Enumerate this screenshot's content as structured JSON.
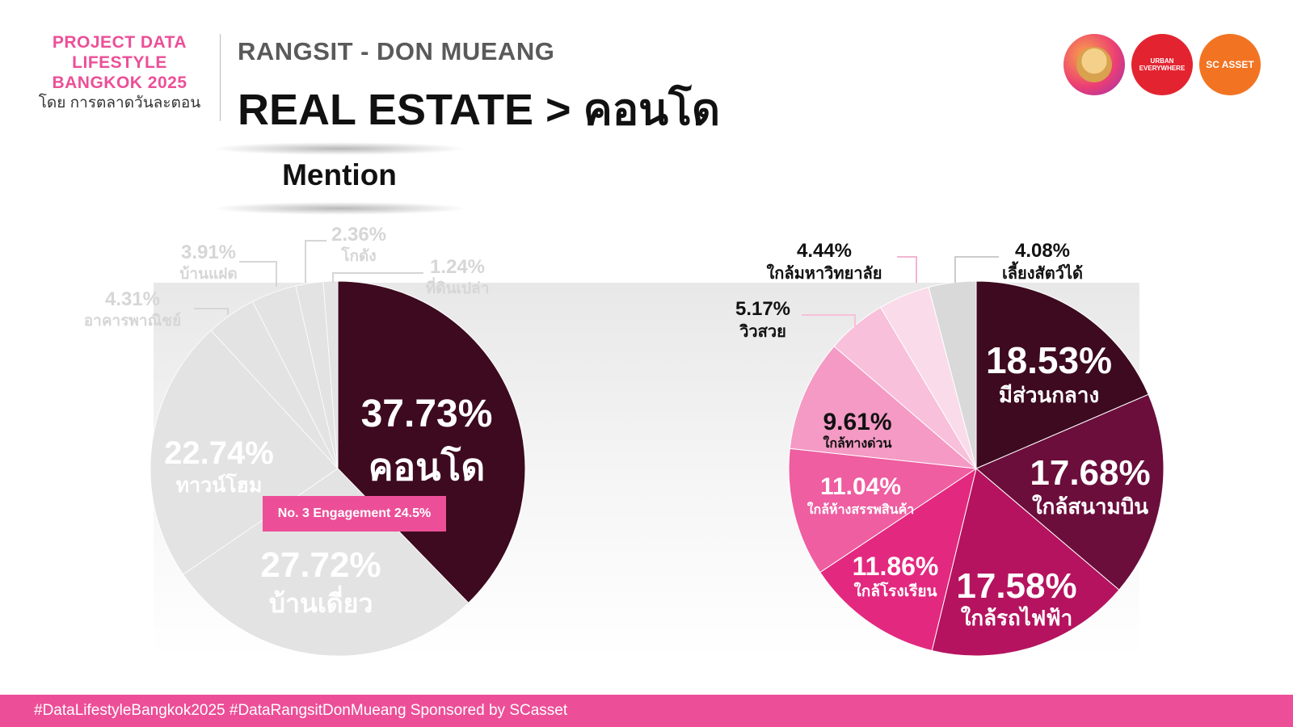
{
  "header": {
    "brand_lines": [
      "PROJECT DATA",
      "LIFESTYLE",
      "BANGKOK 2025"
    ],
    "brand_by": "โดย การตลาดวันละตอน",
    "subtitle": "RANGSIT - DON MUEANG",
    "title": "REAL ESTATE > คอนโด"
  },
  "logos": [
    {
      "name": "hat-avatar-logo"
    },
    {
      "name": "urban-everywhere-logo",
      "text": "URBAN EVERYWHERE"
    },
    {
      "name": "sc-asset-logo",
      "text": "SC ASSET"
    }
  ],
  "section_label": "Mention",
  "badge": "No. 3 Engagement 24.5%",
  "footer": "#DataLifestyleBangkok2025 #DataRangsitDonMueang Sponsored by SCasset",
  "colors": {
    "pink": "#ec4f98",
    "highlight": "#3d0a1f",
    "grey": "#e3e3e3",
    "faint_label": "#d6d6d6"
  },
  "chart_data": [
    {
      "type": "pie",
      "title": "Mention",
      "slices": [
        {
          "label": "คอนโด",
          "value": 37.73,
          "value_text": "37.73%",
          "color": "#3d0a1f",
          "highlight": true
        },
        {
          "label": "บ้านเดี่ยว",
          "value": 27.72,
          "value_text": "27.72%",
          "color": "#e3e3e3"
        },
        {
          "label": "ทาวน์โฮม",
          "value": 22.74,
          "value_text": "22.74%",
          "color": "#e3e3e3"
        },
        {
          "label": "อาคารพาณิชย์",
          "value": 4.31,
          "value_text": "4.31%",
          "color": "#e3e3e3"
        },
        {
          "label": "บ้านแฝด",
          "value": 3.91,
          "value_text": "3.91%",
          "color": "#e3e3e3"
        },
        {
          "label": "โกดัง",
          "value": 2.36,
          "value_text": "2.36%",
          "color": "#e3e3e3"
        },
        {
          "label": "ที่ดินเปล่า",
          "value": 1.24,
          "value_text": "1.24%",
          "color": "#e3e3e3"
        }
      ]
    },
    {
      "type": "pie",
      "slices": [
        {
          "label": "มีส่วนกลาง",
          "value": 18.53,
          "value_text": "18.53%",
          "color": "#3d0a1f"
        },
        {
          "label": "ใกล้สนามบิน",
          "value": 17.68,
          "value_text": "17.68%",
          "color": "#6b0e3c"
        },
        {
          "label": "ใกล้รถไฟฟ้า",
          "value": 17.58,
          "value_text": "17.58%",
          "color": "#b5135f"
        },
        {
          "label": "ใกล้โรงเรียน",
          "value": 11.86,
          "value_text": "11.86%",
          "color": "#e3287f"
        },
        {
          "label": "ใกล้ห้างสรรพสินค้า",
          "value": 11.04,
          "value_text": "11.04%",
          "color": "#ee5ea0"
        },
        {
          "label": "ใกล้ทางด่วน",
          "value": 9.61,
          "value_text": "9.61%",
          "color": "#f49ac4"
        },
        {
          "label": "วิวสวย",
          "value": 5.17,
          "value_text": "5.17%",
          "color": "#f8c0da"
        },
        {
          "label": "ใกล้มหาวิทยาลัย",
          "value": 4.44,
          "value_text": "4.44%",
          "color": "#fadbea"
        },
        {
          "label": "เลี้ยงสัตว์ได้",
          "value": 4.08,
          "value_text": "4.08%",
          "color": "#d9d9d9"
        }
      ]
    }
  ]
}
